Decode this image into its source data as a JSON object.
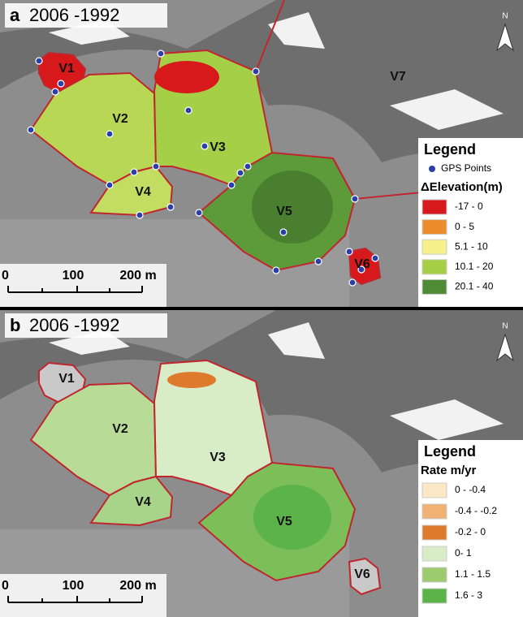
{
  "panels": [
    {
      "letter": "a",
      "title": "2006 -1992",
      "labels": [
        "V1",
        "V2",
        "V3",
        "V4",
        "V5",
        "V6",
        "V7"
      ],
      "legend": {
        "title": "Legend",
        "gps": "GPS Points",
        "subtitle": "ΔElevation(m)",
        "items": [
          {
            "label": "-17 - 0",
            "color": "#d7191c"
          },
          {
            "label": "0 - 5",
            "color": "#ec8c2a"
          },
          {
            "label": "5.1 - 10",
            "color": "#f5f08a"
          },
          {
            "label": "10.1 - 20",
            "color": "#a6cf48"
          },
          {
            "label": "20.1 - 40",
            "color": "#4f8a35"
          }
        ]
      },
      "scale": [
        "0",
        "100",
        "200 m"
      ],
      "north": "N"
    },
    {
      "letter": "b",
      "title": "2006 -1992",
      "labels": [
        "V1",
        "V2",
        "V3",
        "V4",
        "V5",
        "V6"
      ],
      "legend": {
        "title": "Legend",
        "subtitle": "Rate m/yr",
        "items": [
          {
            "label": "0 - -0.4",
            "color": "#fbe6c6"
          },
          {
            "label": "-0.4 - -0.2",
            "color": "#f0b173"
          },
          {
            "label": "-0.2 - 0",
            "color": "#de7a2c"
          },
          {
            "label": "0- 1",
            "color": "#d9ecc8"
          },
          {
            "label": "1.1 - 1.5",
            "color": "#9ccb6e"
          },
          {
            "label": "1.6 - 3",
            "color": "#5cb34a"
          }
        ]
      },
      "scale": [
        "0",
        "100",
        "200 m"
      ],
      "north": "N"
    }
  ]
}
